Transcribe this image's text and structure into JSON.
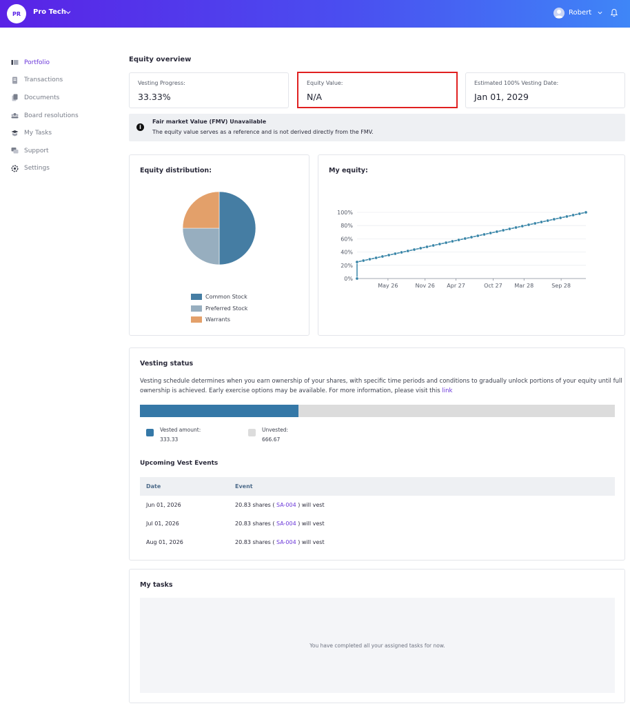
{
  "header": {
    "org_initials": "PR",
    "org_name": "Pro Tech",
    "user_name": "Robert",
    "gradient_start": "#5a22e6",
    "gradient_end": "#3f86f7"
  },
  "sidebar": {
    "items": [
      {
        "label": "Portfolio",
        "icon": "portfolio-icon",
        "active": true
      },
      {
        "label": "Transactions",
        "icon": "transactions-icon"
      },
      {
        "label": "Documents",
        "icon": "documents-icon"
      },
      {
        "label": "Board resolutions",
        "icon": "board-icon"
      },
      {
        "label": "My Tasks",
        "icon": "tasks-icon"
      },
      {
        "label": "Support",
        "icon": "support-icon"
      },
      {
        "label": "Settings",
        "icon": "settings-icon"
      }
    ]
  },
  "overview": {
    "title": "Equity overview",
    "stats": [
      {
        "label": "Vesting Progress:",
        "value": "33.33%"
      },
      {
        "label": "Equity Value:",
        "value": "N/A"
      },
      {
        "label": "Estimated 100% Vesting Date:",
        "value": "Jan 01, 2029"
      }
    ],
    "banner": {
      "title": "Fair market Value (FMV) Unavailable",
      "text": "The equity value serves as a reference and is not derived directly from the FMV."
    }
  },
  "distribution": {
    "title": "Equity distribution:",
    "legend": [
      "Common Stock",
      "Preferred Stock",
      "Warrants"
    ],
    "chart_data": {
      "type": "pie",
      "categories": [
        "Common Stock",
        "Preferred Stock",
        "Warrants"
      ],
      "values": [
        50,
        25,
        25
      ],
      "colors": [
        "#457da3",
        "#97aebf",
        "#e3a06a"
      ],
      "legend": "bottom"
    }
  },
  "my_equity": {
    "title": "My equity:",
    "chart_data": {
      "type": "line",
      "x_ticks": [
        "May 26",
        "Nov 26",
        "Apr 27",
        "Oct 27",
        "Mar 28",
        "Sep 28"
      ],
      "y_ticks": [
        "0%",
        "20%",
        "40%",
        "60%",
        "80%",
        "100%"
      ],
      "ylim": [
        0,
        100
      ],
      "x": [
        "Jan 26",
        "Jan 26",
        "Feb 26",
        "Mar 26",
        "Apr 26",
        "May 26",
        "Jun 26",
        "Jul 26",
        "Aug 26",
        "Sep 26",
        "Oct 26",
        "Nov 26",
        "Dec 26",
        "Jan 27",
        "Feb 27",
        "Mar 27",
        "Apr 27",
        "May 27",
        "Jun 27",
        "Jul 27",
        "Aug 27",
        "Sep 27",
        "Oct 27",
        "Nov 27",
        "Dec 27",
        "Jan 28",
        "Feb 28",
        "Mar 28",
        "Apr 28",
        "May 28",
        "Jun 28",
        "Jul 28",
        "Aug 28",
        "Sep 28",
        "Oct 28",
        "Nov 28",
        "Dec 28",
        "Jan 29"
      ],
      "values": [
        0,
        25,
        27.08,
        29.17,
        31.25,
        33.33,
        35.42,
        37.5,
        39.58,
        41.67,
        43.75,
        45.83,
        47.92,
        50,
        52.08,
        54.17,
        56.25,
        58.33,
        60.42,
        62.5,
        64.58,
        66.67,
        68.75,
        70.83,
        72.92,
        75,
        77.08,
        79.17,
        81.25,
        83.33,
        85.42,
        87.5,
        89.58,
        91.67,
        93.75,
        95.83,
        97.92,
        100
      ],
      "color": "#3a86a8",
      "grid": true
    }
  },
  "vesting": {
    "title": "Vesting status",
    "description": "Vesting schedule determines when you earn ownership of your shares, with specific time periods and conditions to gradually unlock portions of your equity until full ownership is achieved. Early exercise options may be available. For more information, please visit this ",
    "link_text": "link",
    "progress": 0.3333,
    "vested_color": "#3578a7",
    "unvested_color": "#dcdcdc",
    "vested_label": "Vested amount:",
    "vested_value": "333.33",
    "unvested_label": "Unvested:",
    "unvested_value": "666.67",
    "events_title": "Upcoming Vest Events",
    "columns": [
      "Date",
      "Event"
    ],
    "events": [
      {
        "date": "Jun 01, 2026",
        "pre": "20.83 shares ( ",
        "code": "SA-004",
        "post": " ) will vest"
      },
      {
        "date": "Jul 01, 2026",
        "pre": "20.83 shares ( ",
        "code": "SA-004",
        "post": " ) will vest"
      },
      {
        "date": "Aug 01, 2026",
        "pre": "20.83 shares ( ",
        "code": "SA-004",
        "post": " ) will vest"
      }
    ]
  },
  "tasks": {
    "title": "My tasks",
    "empty_text": "You have completed all your assigned tasks for now."
  }
}
